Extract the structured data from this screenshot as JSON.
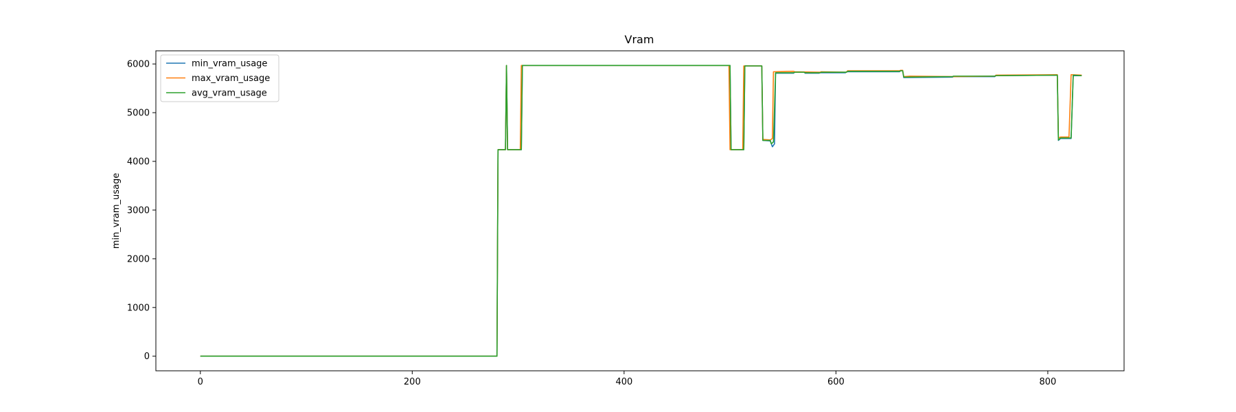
{
  "chart_data": {
    "type": "line",
    "title": "Vram",
    "xlabel": "",
    "ylabel": "min_vram_usage",
    "xlim": [
      -42,
      872
    ],
    "ylim": [
      -300,
      6270
    ],
    "xticks": [
      0,
      200,
      400,
      600,
      800
    ],
    "yticks": [
      0,
      1000,
      2000,
      3000,
      4000,
      5000,
      6000
    ],
    "grid": false,
    "legend": "top-left",
    "series": [
      {
        "name": "min_vram_usage",
        "color": "#1f77b4",
        "points": [
          [
            0,
            0
          ],
          [
            280,
            0
          ],
          [
            281,
            4240
          ],
          [
            288,
            4240
          ],
          [
            289,
            5970
          ],
          [
            290,
            4240
          ],
          [
            303,
            4240
          ],
          [
            304,
            5970
          ],
          [
            500,
            5970
          ],
          [
            501,
            4240
          ],
          [
            513,
            4240
          ],
          [
            514,
            5960
          ],
          [
            530,
            5960
          ],
          [
            531,
            4430
          ],
          [
            538,
            4420
          ],
          [
            540,
            4300
          ],
          [
            542,
            4360
          ],
          [
            543,
            5810
          ],
          [
            560,
            5810
          ],
          [
            561,
            5830
          ],
          [
            570,
            5830
          ],
          [
            571,
            5810
          ],
          [
            584,
            5810
          ],
          [
            585,
            5820
          ],
          [
            609,
            5820
          ],
          [
            610,
            5840
          ],
          [
            660,
            5840
          ],
          [
            661,
            5860
          ],
          [
            663,
            5860
          ],
          [
            664,
            5720
          ],
          [
            710,
            5730
          ],
          [
            711,
            5740
          ],
          [
            750,
            5740
          ],
          [
            751,
            5760
          ],
          [
            809,
            5770
          ],
          [
            810,
            4430
          ],
          [
            812,
            4470
          ],
          [
            822,
            4470
          ],
          [
            824,
            5760
          ],
          [
            832,
            5760
          ]
        ]
      },
      {
        "name": "max_vram_usage",
        "color": "#ff7f0e",
        "points": [
          [
            0,
            0
          ],
          [
            280,
            0
          ],
          [
            281,
            4240
          ],
          [
            288,
            4240
          ],
          [
            289,
            5970
          ],
          [
            290,
            4240
          ],
          [
            302,
            4240
          ],
          [
            303,
            5970
          ],
          [
            499,
            5970
          ],
          [
            500,
            4240
          ],
          [
            512,
            4240
          ],
          [
            513,
            5960
          ],
          [
            530,
            5960
          ],
          [
            531,
            4450
          ],
          [
            538,
            4440
          ],
          [
            540,
            4470
          ],
          [
            541,
            5840
          ],
          [
            560,
            5850
          ],
          [
            561,
            5840
          ],
          [
            585,
            5830
          ],
          [
            586,
            5840
          ],
          [
            610,
            5830
          ],
          [
            611,
            5860
          ],
          [
            660,
            5860
          ],
          [
            661,
            5870
          ],
          [
            663,
            5870
          ],
          [
            664,
            5740
          ],
          [
            670,
            5750
          ],
          [
            710,
            5740
          ],
          [
            750,
            5750
          ],
          [
            751,
            5770
          ],
          [
            809,
            5780
          ],
          [
            810,
            4480
          ],
          [
            812,
            4500
          ],
          [
            820,
            4500
          ],
          [
            822,
            5780
          ],
          [
            832,
            5770
          ]
        ]
      },
      {
        "name": "avg_vram_usage",
        "color": "#2ca02c",
        "points": [
          [
            0,
            0
          ],
          [
            280,
            0
          ],
          [
            281,
            4240
          ],
          [
            288,
            4240
          ],
          [
            289,
            5970
          ],
          [
            290,
            4240
          ],
          [
            303,
            4240
          ],
          [
            304,
            5970
          ],
          [
            500,
            5970
          ],
          [
            501,
            4240
          ],
          [
            513,
            4240
          ],
          [
            514,
            5960
          ],
          [
            530,
            5960
          ],
          [
            531,
            4430
          ],
          [
            538,
            4430
          ],
          [
            539,
            4360
          ],
          [
            541,
            4400
          ],
          [
            543,
            5820
          ],
          [
            560,
            5820
          ],
          [
            561,
            5830
          ],
          [
            570,
            5830
          ],
          [
            571,
            5820
          ],
          [
            585,
            5820
          ],
          [
            586,
            5830
          ],
          [
            610,
            5830
          ],
          [
            611,
            5850
          ],
          [
            660,
            5850
          ],
          [
            661,
            5860
          ],
          [
            663,
            5860
          ],
          [
            664,
            5730
          ],
          [
            710,
            5740
          ],
          [
            711,
            5750
          ],
          [
            750,
            5750
          ],
          [
            751,
            5760
          ],
          [
            809,
            5770
          ],
          [
            810,
            4440
          ],
          [
            812,
            4480
          ],
          [
            822,
            4480
          ],
          [
            824,
            5770
          ],
          [
            832,
            5760
          ]
        ]
      }
    ]
  }
}
